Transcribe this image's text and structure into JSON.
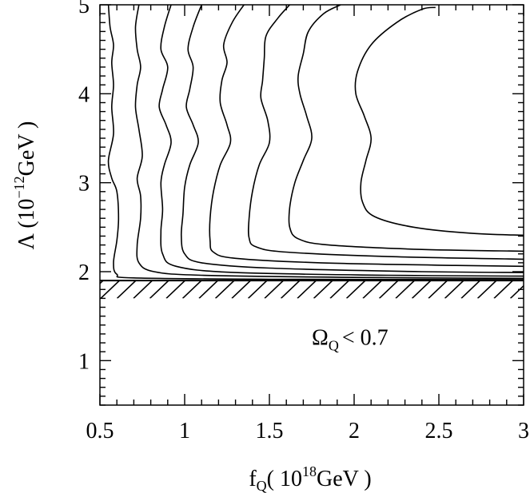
{
  "chart_data": {
    "type": "line",
    "title": "",
    "xlabel": {
      "main": "f",
      "sub": "Q",
      "paren_open": "( 10",
      "sup": "18",
      "unit": "GeV )"
    },
    "ylabel": {
      "main": "Λ (10",
      "sup": "−12",
      "unit": "GeV )"
    },
    "xlim": [
      0.5,
      3.0
    ],
    "ylim": [
      0.5,
      5.0
    ],
    "x_ticks": [
      0.5,
      1,
      1.5,
      2,
      2.5,
      3
    ],
    "x_tick_labels": [
      "0.5",
      "1",
      "1.5",
      "2",
      "2.5",
      "3"
    ],
    "y_ticks": [
      1,
      2,
      3,
      4,
      5
    ],
    "y_tick_labels": [
      "1",
      "2",
      "3",
      "4",
      "5"
    ],
    "excluded_region": {
      "below": 1.9,
      "hatch_until": 1.7
    },
    "annotation": {
      "main": "Ω",
      "sub": "Q",
      "rest": "< 0.7",
      "x": 1.75,
      "y": 1.18
    },
    "series": [
      {
        "name": "contour-1",
        "points": [
          [
            0.55,
            5.0
          ],
          [
            0.56,
            4.75
          ],
          [
            0.58,
            4.55
          ],
          [
            0.57,
            4.35
          ],
          [
            0.58,
            4.1
          ],
          [
            0.57,
            3.85
          ],
          [
            0.58,
            3.55
          ],
          [
            0.55,
            3.25
          ],
          [
            0.57,
            3.05
          ],
          [
            0.6,
            2.9
          ],
          [
            0.61,
            2.6
          ],
          [
            0.6,
            2.35
          ],
          [
            0.58,
            2.1
          ],
          [
            0.6,
            1.97
          ],
          [
            0.7,
            1.93
          ],
          [
            1.5,
            1.915
          ],
          [
            3.0,
            1.91
          ]
        ]
      },
      {
        "name": "contour-2",
        "points": [
          [
            0.73,
            5.0
          ],
          [
            0.71,
            4.75
          ],
          [
            0.72,
            4.5
          ],
          [
            0.74,
            4.3
          ],
          [
            0.72,
            4.1
          ],
          [
            0.71,
            3.85
          ],
          [
            0.73,
            3.6
          ],
          [
            0.75,
            3.3
          ],
          [
            0.72,
            3.05
          ],
          [
            0.74,
            2.85
          ],
          [
            0.74,
            2.6
          ],
          [
            0.72,
            2.3
          ],
          [
            0.73,
            2.1
          ],
          [
            0.82,
            2.0
          ],
          [
            1.1,
            1.96
          ],
          [
            2.0,
            1.935
          ],
          [
            3.0,
            1.925
          ]
        ]
      },
      {
        "name": "contour-3",
        "points": [
          [
            0.92,
            5.0
          ],
          [
            0.88,
            4.75
          ],
          [
            0.86,
            4.5
          ],
          [
            0.9,
            4.3
          ],
          [
            0.87,
            4.05
          ],
          [
            0.85,
            3.85
          ],
          [
            0.89,
            3.65
          ],
          [
            0.92,
            3.45
          ],
          [
            0.88,
            3.2
          ],
          [
            0.86,
            3.0
          ],
          [
            0.87,
            2.7
          ],
          [
            0.86,
            2.45
          ],
          [
            0.87,
            2.2
          ],
          [
            0.95,
            2.06
          ],
          [
            1.3,
            1.99
          ],
          [
            2.2,
            1.96
          ],
          [
            3.0,
            1.95
          ]
        ]
      },
      {
        "name": "contour-4",
        "points": [
          [
            1.1,
            5.0
          ],
          [
            1.05,
            4.75
          ],
          [
            1.02,
            4.5
          ],
          [
            1.05,
            4.3
          ],
          [
            1.03,
            4.05
          ],
          [
            1.01,
            3.85
          ],
          [
            1.05,
            3.65
          ],
          [
            1.08,
            3.45
          ],
          [
            1.03,
            3.2
          ],
          [
            1.0,
            2.95
          ],
          [
            0.99,
            2.65
          ],
          [
            0.98,
            2.4
          ],
          [
            1.0,
            2.2
          ],
          [
            1.1,
            2.1
          ],
          [
            1.5,
            2.04
          ],
          [
            2.4,
            2.0
          ],
          [
            3.0,
            1.99
          ]
        ]
      },
      {
        "name": "contour-5",
        "points": [
          [
            1.35,
            5.0
          ],
          [
            1.28,
            4.8
          ],
          [
            1.23,
            4.55
          ],
          [
            1.25,
            4.35
          ],
          [
            1.22,
            4.15
          ],
          [
            1.21,
            3.9
          ],
          [
            1.25,
            3.65
          ],
          [
            1.27,
            3.45
          ],
          [
            1.21,
            3.2
          ],
          [
            1.17,
            2.9
          ],
          [
            1.15,
            2.6
          ],
          [
            1.15,
            2.35
          ],
          [
            1.17,
            2.22
          ],
          [
            1.3,
            2.15
          ],
          [
            1.8,
            2.1
          ],
          [
            2.6,
            2.07
          ],
          [
            3.0,
            2.06
          ]
        ]
      },
      {
        "name": "contour-6",
        "points": [
          [
            1.62,
            5.0
          ],
          [
            1.55,
            4.85
          ],
          [
            1.48,
            4.65
          ],
          [
            1.47,
            4.4
          ],
          [
            1.46,
            4.15
          ],
          [
            1.45,
            3.95
          ],
          [
            1.49,
            3.7
          ],
          [
            1.5,
            3.45
          ],
          [
            1.44,
            3.2
          ],
          [
            1.4,
            2.9
          ],
          [
            1.38,
            2.6
          ],
          [
            1.38,
            2.38
          ],
          [
            1.42,
            2.28
          ],
          [
            1.6,
            2.22
          ],
          [
            2.2,
            2.17
          ],
          [
            3.0,
            2.14
          ]
        ]
      },
      {
        "name": "contour-7",
        "points": [
          [
            1.92,
            5.0
          ],
          [
            1.82,
            4.9
          ],
          [
            1.73,
            4.7
          ],
          [
            1.7,
            4.45
          ],
          [
            1.67,
            4.2
          ],
          [
            1.68,
            4.0
          ],
          [
            1.72,
            3.75
          ],
          [
            1.75,
            3.5
          ],
          [
            1.7,
            3.25
          ],
          [
            1.65,
            3.0
          ],
          [
            1.62,
            2.72
          ],
          [
            1.62,
            2.5
          ],
          [
            1.67,
            2.37
          ],
          [
            1.85,
            2.3
          ],
          [
            2.4,
            2.25
          ],
          [
            3.0,
            2.23
          ]
        ]
      },
      {
        "name": "contour-8",
        "points": [
          [
            2.48,
            4.97
          ],
          [
            2.4,
            4.95
          ],
          [
            2.25,
            4.8
          ],
          [
            2.1,
            4.55
          ],
          [
            2.02,
            4.25
          ],
          [
            2.01,
            4.0
          ],
          [
            2.06,
            3.75
          ],
          [
            2.1,
            3.5
          ],
          [
            2.07,
            3.25
          ],
          [
            2.04,
            3.0
          ],
          [
            2.05,
            2.78
          ],
          [
            2.12,
            2.62
          ],
          [
            2.35,
            2.5
          ],
          [
            2.7,
            2.43
          ],
          [
            3.0,
            2.41
          ]
        ]
      }
    ]
  }
}
